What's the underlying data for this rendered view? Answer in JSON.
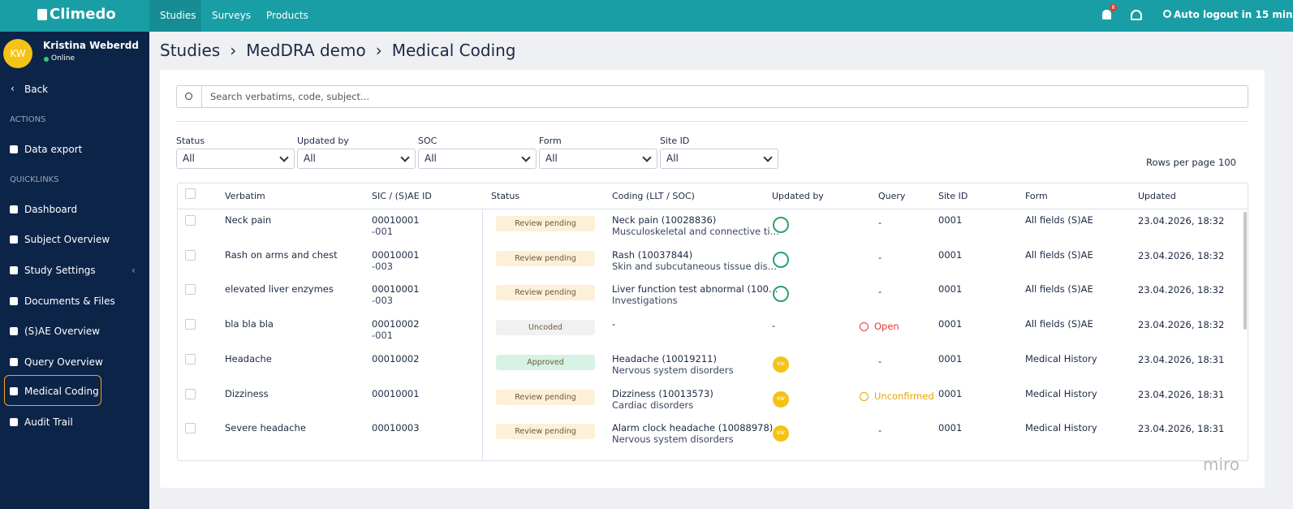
{
  "topbar": {
    "logo": "Climedo",
    "nav": [
      "Studies",
      "Surveys",
      "Products"
    ],
    "notification_count": "8",
    "auto_logout": "Auto logout in 15 min"
  },
  "user": {
    "initials": "KW",
    "name": "Kristina Weberdd",
    "status": "Online"
  },
  "sidebar": {
    "back": "Back",
    "actions_label": "ACTIONS",
    "actions": [
      "Data export"
    ],
    "quicklinks_label": "QUICKLINKS",
    "quicklinks": [
      "Dashboard",
      "Subject Overview",
      "Study Settings",
      "Documents & Files",
      "(S)AE Overview",
      "Query Overview",
      "Medical Coding",
      "Audit Trail"
    ]
  },
  "breadcrumb": [
    "Studies",
    "MedDRA demo",
    "Medical Coding"
  ],
  "search": {
    "placeholder": "Search verbatims, code, subject..."
  },
  "filters": [
    {
      "label": "Status",
      "value": "All"
    },
    {
      "label": "Updated by",
      "value": "All"
    },
    {
      "label": "SOC",
      "value": "All"
    },
    {
      "label": "Form",
      "value": "All"
    },
    {
      "label": "Site ID",
      "value": "All"
    }
  ],
  "rows_per_page": {
    "label": "Rows per page",
    "value": "100"
  },
  "table": {
    "columns": [
      "Verbatim",
      "SIC / (S)AE ID",
      "Status",
      "Coding (LLT / SOC)",
      "Updated by",
      "Query",
      "Site ID",
      "Form",
      "Updated"
    ],
    "rows": [
      {
        "verbatim": "Neck pain",
        "sic": "00010001",
        "ae_id": "-001",
        "status": "Review pending",
        "status_color": "#fdf0d9",
        "coding": "Neck pain (10028836)",
        "soc": "Musculoskeletal and connective ti…",
        "query": "-",
        "site": "0001",
        "form": "All fields (S)AE",
        "updated": "23.04.2026, 18:32"
      },
      {
        "verbatim": "Rash on arms and chest",
        "sic": "00010001",
        "ae_id": "-003",
        "status": "Review pending",
        "status_color": "#fdf0d9",
        "coding": "Rash (10037844)",
        "soc": "Skin and subcutaneous tissue dis…",
        "query": "-",
        "site": "0001",
        "form": "All fields (S)AE",
        "updated": "23.04.2026, 18:32"
      },
      {
        "verbatim": "elevated liver enzymes",
        "sic": "00010001",
        "ae_id": "-003",
        "status": "Review pending",
        "status_color": "#fdf0d9",
        "coding": "Liver function test abnormal (100…",
        "soc": "Investigations",
        "query": "-",
        "site": "0001",
        "form": "All fields (S)AE",
        "updated": "23.04.2026, 18:32"
      },
      {
        "verbatim": "bla bla bla",
        "sic": "00010002",
        "ae_id": "-001",
        "status": "Uncoded",
        "status_color": "#f1f1f1",
        "coding": "-",
        "updated_by": "-",
        "query": "Open",
        "query_color": "#e53935",
        "site": "0001",
        "form": "All fields (S)AE",
        "updated": "23.04.2026, 18:32"
      },
      {
        "verbatim": "Headache",
        "sic": "00010002",
        "status": "Approved",
        "status_color": "#d6f2e4",
        "coding": "Headache (10019211)",
        "soc": "Nervous system disorders",
        "updated_by": "KW",
        "query": "-",
        "site": "0001",
        "form": "Medical History",
        "updated": "23.04.2026, 18:31"
      },
      {
        "verbatim": "Dizziness",
        "sic": "00010001",
        "status": "Review pending",
        "status_color": "#fdf0d9",
        "coding": "Dizziness (10013573)",
        "soc": "Cardiac disorders",
        "updated_by": "KW",
        "query": "Unconfirmed",
        "query_color": "#e9a400",
        "site": "0001",
        "form": "Medical History",
        "updated": "23.04.2026, 18:31"
      },
      {
        "verbatim": "Severe headache",
        "sic": "00010003",
        "status": "Review pending",
        "status_color": "#fdf0d9",
        "coding": "Alarm clock headache (10088978)",
        "soc": "Nervous system disorders",
        "updated_by": "KW",
        "query": "-",
        "site": "0001",
        "form": "Medical History",
        "updated": "23.04.2026, 18:31"
      }
    ]
  },
  "watermark": "miro"
}
